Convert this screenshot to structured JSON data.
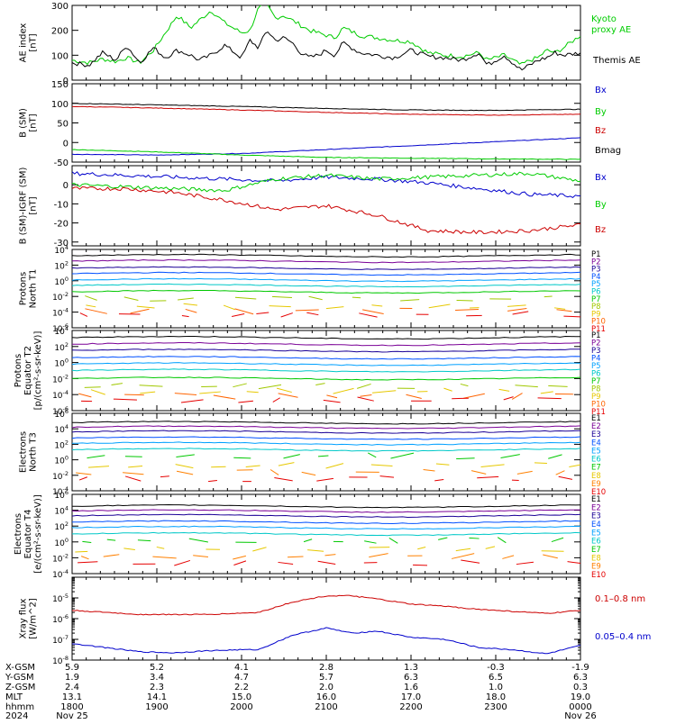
{
  "chart_data": [
    {
      "type": "line",
      "ylabel": "AE index",
      "yunit": "[nT]",
      "ylim": [
        0,
        300
      ],
      "yticks": [
        "0",
        "100",
        "200",
        "300"
      ],
      "scale": "linear",
      "series": [
        {
          "name": "Kyoto proxy AE",
          "color": "#00cc00",
          "x": [
            0,
            10,
            18,
            26,
            32,
            40,
            48,
            55,
            62,
            70,
            75,
            82,
            90,
            100,
            105,
            110,
            115,
            120,
            125,
            130,
            135,
            140,
            145,
            150,
            155,
            160,
            170,
            180,
            190,
            200,
            210,
            220,
            230,
            240,
            245,
            255,
            265,
            270,
            275,
            280,
            285,
            290,
            300
          ],
          "values": [
            80,
            70,
            85,
            75,
            90,
            70,
            120,
            190,
            260,
            210,
            240,
            280,
            230,
            190,
            200,
            290,
            300,
            250,
            260,
            240,
            220,
            200,
            190,
            180,
            170,
            210,
            180,
            170,
            160,
            155,
            110,
            100,
            95,
            110,
            80,
            100,
            60,
            80,
            90,
            120,
            110,
            130,
            180
          ]
        },
        {
          "name": "Themis AE",
          "color": "#000000",
          "x": [
            0,
            10,
            18,
            26,
            32,
            40,
            48,
            55,
            62,
            70,
            75,
            82,
            90,
            100,
            105,
            110,
            115,
            120,
            125,
            130,
            135,
            140,
            145,
            150,
            155,
            160,
            170,
            180,
            190,
            200,
            210,
            220,
            230,
            240,
            245,
            255,
            265,
            270,
            275,
            280,
            285,
            290,
            300
          ],
          "values": [
            70,
            60,
            110,
            80,
            140,
            70,
            130,
            90,
            120,
            100,
            80,
            100,
            140,
            90,
            160,
            130,
            200,
            160,
            170,
            150,
            110,
            90,
            100,
            120,
            100,
            150,
            110,
            100,
            90,
            120,
            95,
            90,
            80,
            110,
            60,
            100,
            40,
            60,
            80,
            90,
            110,
            100,
            110
          ]
        }
      ],
      "legend": [
        "Kyoto",
        "proxy AE",
        "Themis AE"
      ]
    },
    {
      "type": "line",
      "ylabel": "B (SM)",
      "yunit": "[nT]",
      "ylim": [
        -50,
        150
      ],
      "yticks": [
        "-50",
        "0",
        "50",
        "100",
        "150"
      ],
      "scale": "linear",
      "series": [
        {
          "name": "Bx",
          "color": "#0000cc",
          "x": [
            0,
            50,
            100,
            150,
            200,
            250,
            300
          ],
          "values": [
            -30,
            -32,
            -28,
            -18,
            -8,
            2,
            12
          ]
        },
        {
          "name": "By",
          "color": "#00cc00",
          "x": [
            0,
            50,
            100,
            150,
            200,
            250,
            300
          ],
          "values": [
            -18,
            -24,
            -32,
            -38,
            -40,
            -42,
            -43
          ]
        },
        {
          "name": "Bz",
          "color": "#cc0000",
          "x": [
            0,
            50,
            100,
            150,
            200,
            250,
            300
          ],
          "values": [
            92,
            88,
            83,
            77,
            72,
            70,
            72
          ]
        },
        {
          "name": "Bmag",
          "color": "#000000",
          "x": [
            0,
            50,
            100,
            150,
            200,
            250,
            300
          ],
          "values": [
            100,
            96,
            92,
            87,
            83,
            82,
            85
          ]
        }
      ],
      "legend": [
        "Bx",
        "By",
        "Bz",
        "Bmag"
      ]
    },
    {
      "type": "line",
      "ylabel": "B (SM)-IGRF (SM)",
      "yunit": "[nT]",
      "ylim": [
        -32,
        10
      ],
      "yticks": [
        "-30",
        "-20",
        "-10",
        "0"
      ],
      "scale": "linear",
      "series": [
        {
          "name": "Bx",
          "color": "#0000cc",
          "x": [
            0,
            30,
            60,
            90,
            120,
            150,
            180,
            210,
            240,
            270,
            300
          ],
          "values": [
            6,
            5,
            4,
            3,
            2,
            4,
            3,
            1,
            -2,
            -5,
            -6
          ]
        },
        {
          "name": "By",
          "color": "#00cc00",
          "x": [
            0,
            30,
            60,
            90,
            120,
            150,
            180,
            210,
            240,
            270,
            300
          ],
          "values": [
            0,
            -1,
            -2,
            -3,
            3,
            5,
            3,
            4,
            5,
            6,
            2
          ]
        },
        {
          "name": "Bz",
          "color": "#cc0000",
          "x": [
            0,
            30,
            60,
            90,
            120,
            150,
            180,
            210,
            240,
            270,
            300
          ],
          "values": [
            -2,
            -2,
            -4,
            -8,
            -13,
            -11,
            -16,
            -24,
            -25,
            -24,
            -21
          ]
        }
      ],
      "legend": [
        "Bx",
        "By",
        "Bz"
      ]
    },
    {
      "type": "line",
      "ylabel": "Protons North T1",
      "yunit": "",
      "scale": "log",
      "yexp": [
        -6,
        4
      ],
      "yticks": [
        "10^4",
        "10^2",
        "10^0",
        "10^-2",
        "10^-4",
        "10^-6"
      ],
      "series_labels": [
        "P1",
        "P2",
        "P3",
        "P4",
        "P5",
        "P6",
        "P7",
        "P8",
        "P9",
        "P10",
        "P11"
      ],
      "levels_log10": [
        3.2,
        2.5,
        1.6,
        0.9,
        0.1,
        -0.6,
        -1.4,
        -2.3,
        -3.3,
        -3.9,
        -4.3
      ],
      "colors": [
        "#000000",
        "#7a0096",
        "#1a0096",
        "#0050ff",
        "#00a0ff",
        "#00c8c8",
        "#00c800",
        "#a0c800",
        "#e6c800",
        "#ff6400",
        "#e60000"
      ]
    },
    {
      "type": "line",
      "ylabel": "Protons Equator T2",
      "yunit": "[p/(cm²-s-sr-keV)]",
      "scale": "log",
      "yexp": [
        -6,
        4
      ],
      "yticks": [
        "10^4",
        "10^2",
        "10^0",
        "10^-2",
        "10^-4",
        "10^-6"
      ],
      "series_labels": [
        "P1",
        "P2",
        "P3",
        "P4",
        "P5",
        "P6",
        "P7",
        "P8",
        "P9",
        "P10",
        "P11"
      ],
      "levels_log10": [
        3.1,
        2.3,
        1.5,
        0.6,
        -0.2,
        -1.0,
        -2.0,
        -2.9,
        -3.6,
        -4.2,
        -4.6
      ],
      "colors": [
        "#000000",
        "#7a0096",
        "#1a0096",
        "#0050ff",
        "#00a0ff",
        "#00c8c8",
        "#00c800",
        "#a0c800",
        "#e6c800",
        "#ff6400",
        "#e60000"
      ]
    },
    {
      "type": "line",
      "ylabel": "Electrons North T3",
      "yunit": "",
      "scale": "log",
      "yexp": [
        -4,
        6
      ],
      "yticks": [
        "10^6",
        "10^4",
        "10^2",
        "10^0",
        "10^-2",
        "10^-4"
      ],
      "series_labels": [
        "E1",
        "E2",
        "E3",
        "E4",
        "E5",
        "E6",
        "E7",
        "E8",
        "E9",
        "E10"
      ],
      "levels_log10": [
        4.8,
        4.2,
        3.6,
        2.8,
        2.1,
        1.3,
        0.5,
        -0.7,
        -1.6,
        -2.5
      ],
      "colors": [
        "#000000",
        "#7a0096",
        "#1a0096",
        "#0050ff",
        "#00a0ff",
        "#00c8c8",
        "#00c800",
        "#e6c800",
        "#ff8000",
        "#e60000"
      ]
    },
    {
      "type": "line",
      "ylabel": "Electrons Equator T4",
      "yunit": "[e/(cm²-s-sr-keV)]",
      "scale": "log",
      "yexp": [
        -4,
        6
      ],
      "yticks": [
        "10^6",
        "10^4",
        "10^2",
        "10^0",
        "10^-2",
        "10^-4"
      ],
      "series_labels": [
        "E1",
        "E2",
        "E3",
        "E4",
        "E5",
        "E6",
        "E7",
        "E8",
        "E9",
        "E10"
      ],
      "levels_log10": [
        4.5,
        3.9,
        3.3,
        2.5,
        1.8,
        1.0,
        0.2,
        -0.9,
        -1.8,
        -2.6
      ],
      "colors": [
        "#000000",
        "#7a0096",
        "#1a0096",
        "#0050ff",
        "#00a0ff",
        "#00c8c8",
        "#00c800",
        "#e6c800",
        "#ff8000",
        "#e60000"
      ]
    },
    {
      "type": "line",
      "ylabel": "Xray flux",
      "yunit": "[W/m^2]",
      "scale": "log",
      "yexp": [
        -8,
        -4
      ],
      "yticks": [
        "10^-5",
        "10^-6",
        "10^-7",
        "10^-8"
      ],
      "series": [
        {
          "name": "0.1-0.8 nm",
          "color": "#cc0000",
          "x": [
            0,
            40,
            80,
            110,
            130,
            150,
            165,
            180,
            200,
            220,
            240,
            260,
            280,
            300
          ],
          "values_log10": [
            -5.6,
            -5.8,
            -5.8,
            -5.7,
            -5.2,
            -4.9,
            -4.9,
            -5.05,
            -5.3,
            -5.4,
            -5.55,
            -5.65,
            -5.75,
            -5.6
          ]
        },
        {
          "name": "0.05-0.4 nm",
          "color": "#0000cc",
          "x": [
            0,
            20,
            40,
            60,
            80,
            100,
            110,
            130,
            150,
            165,
            180,
            200,
            220,
            240,
            260,
            280,
            300
          ],
          "values_log10": [
            -7.2,
            -7.4,
            -7.6,
            -7.65,
            -7.55,
            -7.5,
            -7.5,
            -6.8,
            -6.45,
            -6.7,
            -6.6,
            -6.9,
            -7.0,
            -7.4,
            -7.5,
            -7.7,
            -7.3
          ]
        }
      ],
      "legend": [
        "0.1–0.8 nm",
        "0.05–0.4 nm"
      ]
    }
  ],
  "time_axis": {
    "row_labels": [
      "X-GSM",
      "Y-GSM",
      "Z-GSM",
      "MLT",
      "hhmm",
      "2024"
    ],
    "ticks": [
      {
        "x": 0,
        "X-GSM": "5.9",
        "Y-GSM": "1.9",
        "Z-GSM": "2.4",
        "MLT": "13.1",
        "hhmm": "1800",
        "date": "Nov 25"
      },
      {
        "x": 50,
        "X-GSM": "5.2",
        "Y-GSM": "3.4",
        "Z-GSM": "2.3",
        "MLT": "14.1",
        "hhmm": "1900",
        "date": ""
      },
      {
        "x": 100,
        "X-GSM": "4.1",
        "Y-GSM": "4.7",
        "Z-GSM": "2.2",
        "MLT": "15.0",
        "hhmm": "2000",
        "date": ""
      },
      {
        "x": 150,
        "X-GSM": "2.8",
        "Y-GSM": "5.7",
        "Z-GSM": "2.0",
        "MLT": "16.0",
        "hhmm": "2100",
        "date": ""
      },
      {
        "x": 200,
        "X-GSM": "1.3",
        "Y-GSM": "6.3",
        "Z-GSM": "1.6",
        "MLT": "17.0",
        "hhmm": "2200",
        "date": ""
      },
      {
        "x": 250,
        "X-GSM": "-0.3",
        "Y-GSM": "6.5",
        "Z-GSM": "1.0",
        "MLT": "18.0",
        "hhmm": "2300",
        "date": ""
      },
      {
        "x": 300,
        "X-GSM": "-1.9",
        "Y-GSM": "6.3",
        "Z-GSM": "0.3",
        "MLT": "19.0",
        "hhmm": "0000",
        "date": "Nov 26"
      }
    ]
  }
}
